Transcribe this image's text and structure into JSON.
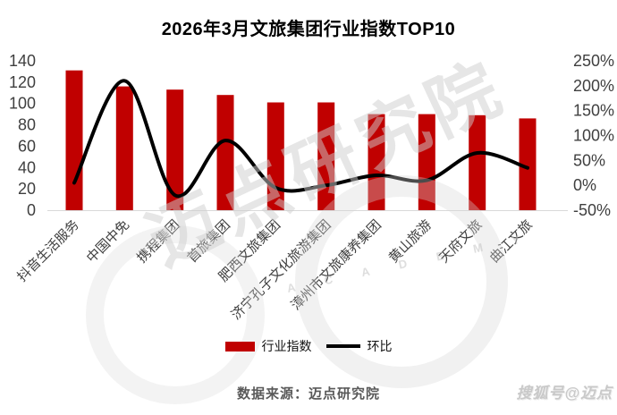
{
  "chart_data": {
    "type": "bar",
    "title": "2026年3月文旅集团行业指数TOP10",
    "categories": [
      "抖音生活服务",
      "中国中免",
      "携程集团",
      "首旅集团",
      "肥西文旅集团",
      "济宁孔子文化旅游集团",
      "漳州市文旅康养集团",
      "黄山旅游",
      "天府文旅",
      "曲江文旅"
    ],
    "series": [
      {
        "name": "行业指数",
        "type": "bar",
        "axis": "left",
        "color": "#c00000",
        "values": [
          131,
          116,
          113,
          108,
          101,
          101,
          90,
          90,
          89,
          86
        ]
      },
      {
        "name": "环比",
        "type": "line",
        "axis": "right",
        "color": "#000000",
        "unit": "%",
        "values": [
          5,
          210,
          -20,
          90,
          -5,
          0,
          20,
          10,
          65,
          35
        ]
      }
    ],
    "left_axis": {
      "min": 0,
      "max": 140,
      "ticks": [
        0,
        20,
        40,
        60,
        80,
        100,
        120,
        140
      ]
    },
    "right_axis": {
      "min": -50,
      "max": 250,
      "ticks": [
        -50,
        0,
        50,
        100,
        150,
        200,
        250
      ],
      "format": "percent"
    },
    "legend_position": "bottom",
    "grid": false
  },
  "footer": {
    "source": "数据来源：迈点研究院",
    "handle": "搜狐号@迈点"
  },
  "watermark": {
    "brand": "迈点研究院",
    "letters": "A C A D E M Y"
  },
  "colors": {
    "bar": "#c00000",
    "line": "#000000",
    "axis_text": "#3f3f3f",
    "category_text": "#404040",
    "baseline": "#d9d9d9"
  }
}
